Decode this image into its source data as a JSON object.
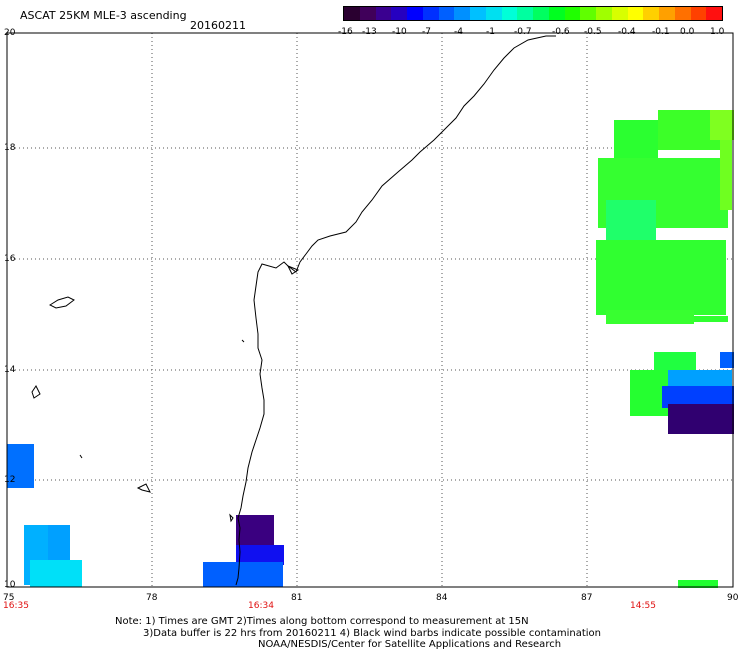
{
  "header": {
    "title": "ASCAT 25KM MLE-3 ascending",
    "date": "20160211"
  },
  "colorbar": {
    "colors": [
      "#2a0030",
      "#40005a",
      "#3a0090",
      "#2600c0",
      "#0000ff",
      "#0030ff",
      "#0060ff",
      "#0090ff",
      "#00c0ff",
      "#00e0f0",
      "#00ffd8",
      "#00ffa0",
      "#00ff60",
      "#00ff20",
      "#20ff00",
      "#60ff00",
      "#a0ff00",
      "#d8ff00",
      "#ffff00",
      "#ffd000",
      "#ffa000",
      "#ff7000",
      "#ff4000",
      "#ff1010"
    ],
    "tick_labels": [
      "-16",
      "-13",
      "-10",
      "-7",
      "-4",
      "-1",
      "-0.7",
      "-0.6",
      "-0.5",
      "-0.4",
      "-0.1",
      "0.0",
      "1.0"
    ]
  },
  "axes": {
    "y_labels": [
      "20",
      "18",
      "16",
      "14",
      "12",
      "10"
    ],
    "x_labels": [
      "75",
      "78",
      "81",
      "84",
      "87",
      "90"
    ],
    "x_range": [
      75,
      90
    ],
    "y_range": [
      10,
      20
    ],
    "grid": "dotted"
  },
  "times": [
    "16:35",
    "16:34",
    "14:55"
  ],
  "notes": [
    "Note: 1) Times are GMT 2)Times along bottom correspond to measurement at 15N",
    "3)Data buffer is 22 hrs from 20160211 4) Black wind barbs indicate possible contamination",
    "NOAA/NESDIS/Center for Satellite Applications and Research"
  ]
}
